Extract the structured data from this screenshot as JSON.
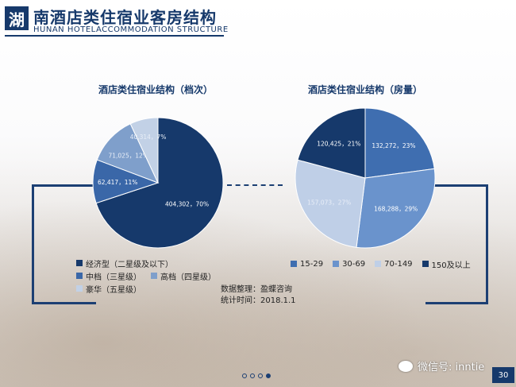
{
  "header": {
    "badge": "湖",
    "title": "南酒店类住宿业客房结构",
    "subtitle": "HUNAN HOTELACCOMMODATION STRUCTURE"
  },
  "chart_data": [
    {
      "type": "pie",
      "title": "酒店类住宿业结构（档次）",
      "categories": [
        "经济型（二星级及以下）",
        "中档（三星级）",
        "高档（四星级）",
        "豪华（五星级）"
      ],
      "values": [
        404302,
        62417,
        71025,
        40314
      ],
      "percents": [
        70,
        11,
        12,
        7
      ],
      "data_labels": [
        "404,302，70%",
        "62,417，11%",
        "71,025，12%",
        "40,314，7%"
      ],
      "colors": [
        "#16396b",
        "#3a67a8",
        "#7f9fcb",
        "#c2d1e6"
      ],
      "legend_position": "bottom"
    },
    {
      "type": "pie",
      "title": "酒店类住宿业结构（房量）",
      "categories": [
        "15-29",
        "30-69",
        "70-149",
        "150及以上"
      ],
      "values": [
        132272,
        168288,
        157073,
        120425
      ],
      "percents": [
        23,
        29,
        27,
        21
      ],
      "data_labels": [
        "132,272，23%",
        "168,288，29%",
        "157,073，27%",
        "120,425，21%"
      ],
      "colors": [
        "#3f6eb0",
        "#6a93cc",
        "#bfcfe7",
        "#16396b"
      ],
      "legend_position": "bottom"
    }
  ],
  "source": {
    "line1": "数据整理：盈蝶咨询",
    "line2": "统计时间：2018.1.1"
  },
  "watermark": "微信号: inntie",
  "page_number": "30"
}
